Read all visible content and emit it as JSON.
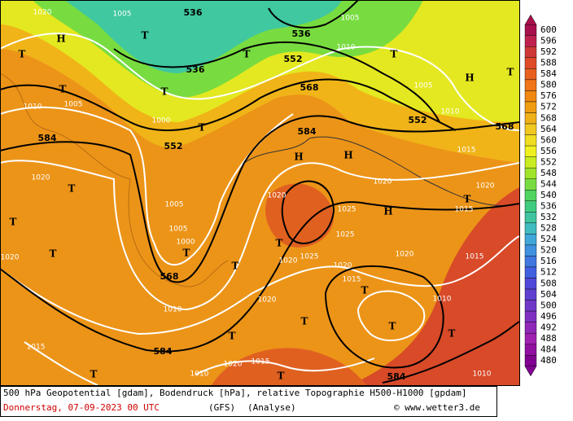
{
  "map": {
    "labels": [
      "536",
      "552",
      "568",
      "552",
      "552",
      "568",
      "584",
      "584",
      "568",
      "584",
      "584",
      "536",
      "536",
      "1020",
      "1005",
      "1005",
      "1010",
      "1005",
      "1010",
      "1005",
      "1000",
      "1010",
      "1015",
      "1020",
      "1005",
      "1005",
      "1000",
      "1020",
      "1025",
      "1025",
      "1025",
      "1020",
      "1020",
      "1010",
      "1020",
      "1020",
      "1015",
      "1020",
      "1020",
      "1020",
      "1015",
      "1015",
      "1010",
      "1015",
      "1015",
      "1020",
      "1010",
      "1010",
      "H",
      "T",
      "T",
      "T",
      "T",
      "H",
      "T",
      "T",
      "T",
      "T",
      "H",
      "H",
      "T",
      "T",
      "T",
      "T",
      "T",
      "T",
      "H",
      "T",
      "T",
      "T",
      "T",
      "T",
      "T",
      "T",
      "T"
    ]
  },
  "legend": {
    "values": [
      600,
      596,
      592,
      588,
      584,
      580,
      576,
      572,
      568,
      564,
      560,
      556,
      552,
      548,
      544,
      540,
      536,
      532,
      528,
      524,
      520,
      516,
      512,
      508,
      504,
      500,
      496,
      492,
      488,
      484,
      480
    ],
    "colors": [
      "#a8104c",
      "#c02050",
      "#d03838",
      "#e04a28",
      "#e86020",
      "#f07418",
      "#f08810",
      "#f09c10",
      "#f0b018",
      "#f0c820",
      "#f0dc20",
      "#f0f020",
      "#c8ec20",
      "#a0e428",
      "#78dc40",
      "#50d460",
      "#40cc80",
      "#40c4a0",
      "#40bcc0",
      "#40a8d8",
      "#4090e0",
      "#4078e0",
      "#4060e0",
      "#5048d8",
      "#6040d0",
      "#7038c8",
      "#8030c0",
      "#9028b8",
      "#a020b0",
      "#9010a0",
      "#800090"
    ]
  },
  "caption": {
    "line1": "500 hPa Geopotential [gdam], Bodendruck [hPa], relative Topographie H500-H1000 [gpdam]",
    "date": "Donnerstag, 07-09-2023  00 UTC",
    "model": "(GFS)",
    "run": "(Analyse)",
    "credit": "© www.wetter3.de"
  }
}
